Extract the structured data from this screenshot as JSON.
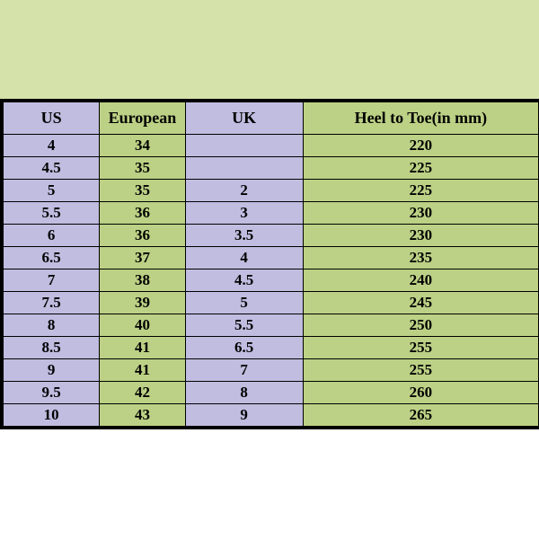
{
  "table": {
    "type": "table",
    "background_top": "#d5e3ab",
    "background_bottom": "#ffffff",
    "border_color": "#000000",
    "header_fontsize": 18,
    "cell_fontsize": 17,
    "font_weight": "bold",
    "columns": [
      {
        "label": "US",
        "color": "#c0bde0",
        "width_pct": 18
      },
      {
        "label": "European",
        "color": "#bcd185",
        "width_pct": 16
      },
      {
        "label": "UK",
        "color": "#c0bde0",
        "width_pct": 22
      },
      {
        "label": "Heel to Toe(in mm)",
        "color": "#bcd185",
        "width_pct": 44
      }
    ],
    "rows": [
      [
        "4",
        "34",
        "",
        "220"
      ],
      [
        "4.5",
        "35",
        "",
        "225"
      ],
      [
        "5",
        "35",
        "2",
        "225"
      ],
      [
        "5.5",
        "36",
        "3",
        "230"
      ],
      [
        "6",
        "36",
        "3.5",
        "230"
      ],
      [
        "6.5",
        "37",
        "4",
        "235"
      ],
      [
        "7",
        "38",
        "4.5",
        "240"
      ],
      [
        "7.5",
        "39",
        "5",
        "245"
      ],
      [
        "8",
        "40",
        "5.5",
        "250"
      ],
      [
        "8.5",
        "41",
        "6.5",
        "255"
      ],
      [
        "9",
        "41",
        "7",
        "255"
      ],
      [
        "9.5",
        "42",
        "8",
        "260"
      ],
      [
        "10",
        "43",
        "9",
        "265"
      ]
    ],
    "column_color_classes": [
      "col-lavender",
      "col-green",
      "col-lavender",
      "col-green"
    ]
  }
}
